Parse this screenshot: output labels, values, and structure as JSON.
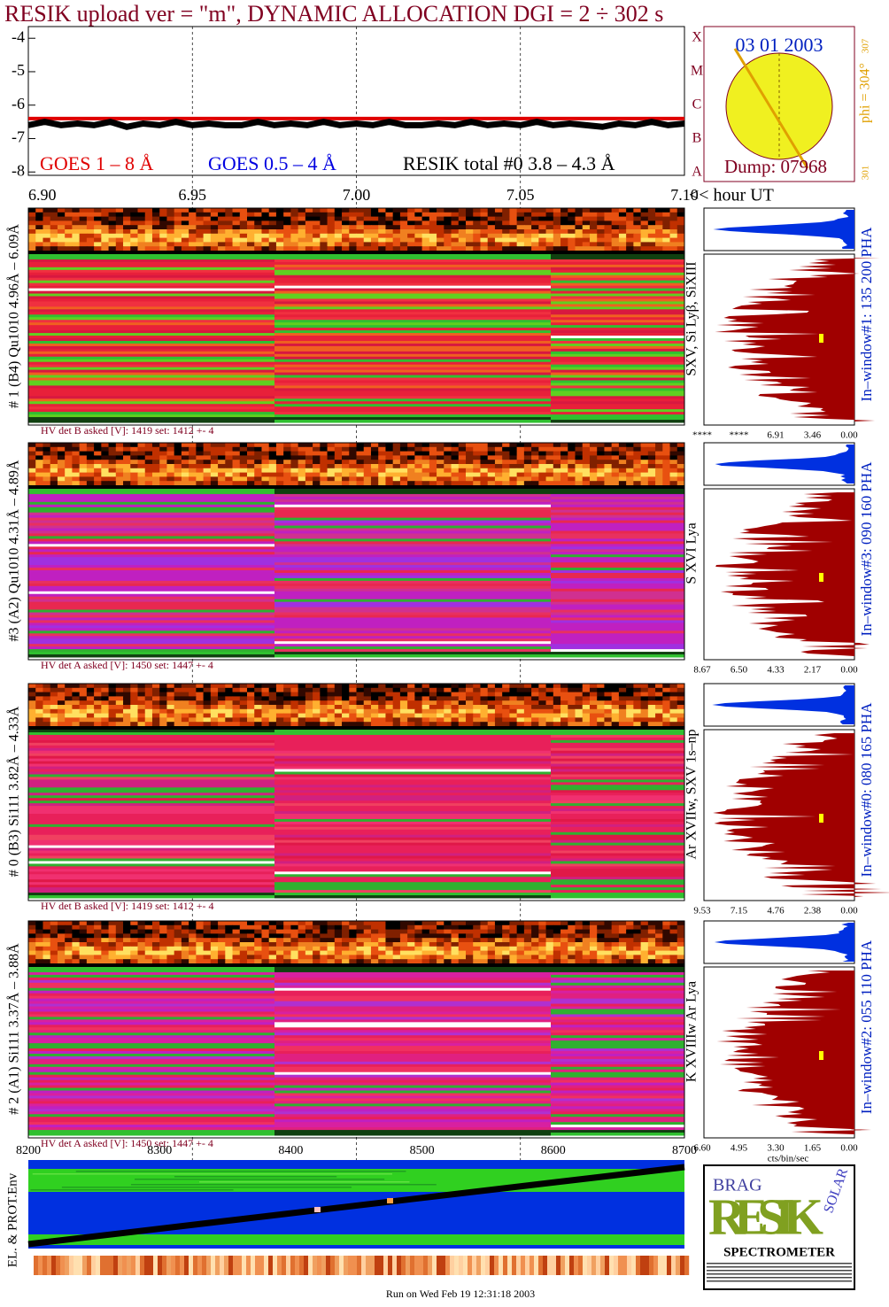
{
  "title": "RESIK upload ver = \"m\", DYNAMIC ALLOCATION  DGI =   2 ÷ 302 s",
  "chart_data": {
    "type": "line",
    "x_label": "<< hour UT",
    "x": [
      6.9,
      6.905,
      6.91,
      6.915,
      6.92,
      6.925,
      6.93,
      6.935,
      6.94,
      6.945,
      6.95,
      6.955,
      6.96,
      6.965,
      6.97,
      6.975,
      6.98,
      6.985,
      6.99,
      6.995,
      7.0,
      7.005,
      7.01,
      7.015,
      7.02,
      7.025,
      7.03,
      7.035,
      7.04,
      7.045,
      7.05,
      7.055,
      7.06,
      7.065,
      7.07,
      7.075,
      7.08,
      7.085,
      7.09,
      7.095,
      7.1
    ],
    "series": [
      {
        "name": "GOES 1 – 8 Å",
        "color": "#e00000",
        "values": [
          -6.4,
          -6.4,
          -6.4,
          -6.4,
          -6.4,
          -6.4,
          -6.4,
          -6.4,
          -6.4,
          -6.4,
          -6.4,
          -6.4,
          -6.4,
          -6.4,
          -6.4,
          -6.4,
          -6.4,
          -6.4,
          -6.4,
          -6.4,
          -6.4,
          -6.4,
          -6.4,
          -6.4,
          -6.4,
          -6.4,
          -6.4,
          -6.4,
          -6.4,
          -6.4,
          -6.4,
          -6.4,
          -6.4,
          -6.4,
          -6.4,
          -6.4,
          -6.4,
          -6.4,
          -6.4,
          -6.4,
          -6.4
        ]
      },
      {
        "name": "GOES 0.5 – 4 Å",
        "color": "#0000e0",
        "values": [
          null,
          null,
          null,
          null,
          null,
          null,
          null,
          null,
          null,
          null,
          null,
          null,
          null,
          null,
          null,
          null,
          null,
          null,
          null,
          null,
          null,
          null,
          null,
          null,
          null,
          null,
          null,
          null,
          null,
          null,
          null,
          null,
          null,
          null,
          null,
          null,
          null,
          null,
          null,
          null,
          null
        ]
      },
      {
        "name": "RESIK total #0  3.8 – 4.3 Å",
        "color": "#000000",
        "values": [
          -6.6,
          -6.5,
          -6.6,
          -6.55,
          -6.6,
          -6.5,
          -6.65,
          -6.55,
          -6.6,
          -6.5,
          -6.6,
          -6.55,
          -6.6,
          -6.6,
          -6.5,
          -6.6,
          -6.55,
          -6.6,
          -6.5,
          -6.6,
          -6.55,
          -6.6,
          -6.5,
          -6.6,
          -6.6,
          -6.55,
          -6.6,
          -6.5,
          -6.6,
          -6.55,
          -6.6,
          -6.5,
          -6.6,
          -6.55,
          -6.6,
          -6.65,
          -6.55,
          -6.6,
          -6.5,
          -6.6,
          -6.55
        ]
      }
    ],
    "xlim": [
      6.9,
      7.1
    ],
    "xticks": [
      {
        "value": 6.9,
        "label": "6.90"
      },
      {
        "value": 6.95,
        "label": "6.95"
      },
      {
        "value": 7.0,
        "label": "7.00"
      },
      {
        "value": 7.05,
        "label": "7.05"
      },
      {
        "value": 7.1,
        "label": "7.10"
      }
    ],
    "ylim": [
      -8.1,
      -3.65
    ],
    "yticks": [
      -4,
      -5,
      -6,
      -7,
      -8
    ],
    "grid": true
  },
  "sun": {
    "date": "03 01 2003",
    "dump": "Dump: 07968",
    "phi": "phi = 304°",
    "phi_max": "307",
    "phi_min": "301",
    "classes": [
      "X",
      "M",
      "C",
      "B",
      "A"
    ]
  },
  "detectors": [
    {
      "label": "# 1 (B4) Qu1010 4.96Å – 6.09Å",
      "lines": "SXV, Si Lyβ, SiXIII",
      "window": "In–window#1:  135 200 PHA",
      "hv": "HV det B asked [V]:  1419 set:  1412 +-    4",
      "hist_ticks": [
        "****",
        "****",
        "6.91",
        "3.46",
        "0.00"
      ]
    },
    {
      "label": "#3 (A2) Qu1010  4.31Å – 4.89Å",
      "lines": "S XVI Lya",
      "window": "In–window#3:  090 160 PHA",
      "hv": "HV det A asked [V]:  1450 set:  1447 +-    4",
      "hist_ticks": [
        "8.67",
        "6.50",
        "4.33",
        "2.17",
        "0.00"
      ]
    },
    {
      "label": "# 0 (B3) Si111  3.82Å – 4.33Å",
      "lines": "Ar XVIIw,  SXV 1s–np",
      "window": "In–window#0:  080 165 PHA",
      "hv": "HV det B asked [V]:  1419 set:  1412 +-    4",
      "hist_ticks": [
        "9.53",
        "7.15",
        "4.76",
        "2.38",
        "0.00"
      ]
    },
    {
      "label": "# 2 (A1) Si111  3.37Å – 3.88Å",
      "lines": "K XVIIIw  Ar Lya",
      "window": "In–window#2:  055 110 PHA",
      "hv": "HV det A asked [V]:  1450 set:  1447 +-    4",
      "hist_ticks": [
        "6.60",
        "4.95",
        "3.30",
        "1.65",
        "0.00"
      ]
    }
  ],
  "env": {
    "label": "EL. & PROT.Env",
    "ticks": [
      "8200",
      "8300",
      "8400",
      "8500",
      "8600",
      "8700"
    ],
    "hist_unit": "cts/bin/sec"
  },
  "logo": {
    "top": "BRAG",
    "middle": "RESIK",
    "side": "SOLAR",
    "bottom": "SPECTROMETER"
  },
  "footer": "Run on Wed Feb 19 12:31:18 2003"
}
